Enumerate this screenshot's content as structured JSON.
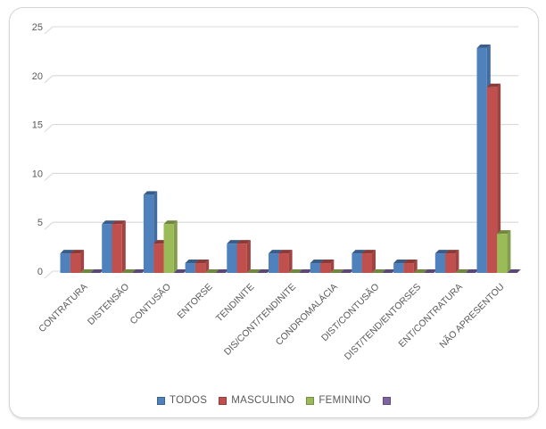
{
  "chart_data": {
    "type": "bar",
    "style": "3d-clustered-column",
    "title": "",
    "xlabel": "",
    "ylabel": "",
    "categories": [
      "CONTRATURA",
      "DISTENSÃO",
      "CONTUSÃO",
      "ENTORSE",
      "TENDINITE",
      "DIS/CONT/TENDINITE",
      "CONDROMALÁCIA",
      "DIST/CONTUSÃO",
      "DIST/TEND/ENTORSES",
      "ENT/CONTRATURA",
      "NÃO APRESENTOU"
    ],
    "series": [
      {
        "name": "TODOS",
        "color": "#4f81bd",
        "values": [
          2,
          5,
          8,
          1,
          3,
          2,
          1,
          2,
          1,
          2,
          23
        ]
      },
      {
        "name": "MASCULINO",
        "color": "#c0504d",
        "values": [
          2,
          5,
          3,
          1,
          3,
          2,
          1,
          2,
          1,
          2,
          19
        ]
      },
      {
        "name": "FEMININO",
        "color": "#9bbb59",
        "values": [
          0,
          0,
          5,
          0,
          0,
          0,
          0,
          0,
          0,
          0,
          4
        ]
      },
      {
        "name": "",
        "color": "#8064a2",
        "values": [
          0,
          0,
          0,
          0,
          0,
          0,
          0,
          0,
          0,
          0,
          0
        ]
      }
    ],
    "ylim": [
      0,
      25
    ],
    "yticks": [
      0,
      5,
      10,
      15,
      20,
      25
    ],
    "grid": true,
    "legend_position": "bottom",
    "colors": {
      "gridline": "#d9d9d9",
      "axis_text": "#595959",
      "frame_border": "#d4d4d4",
      "background": "#ffffff"
    }
  }
}
